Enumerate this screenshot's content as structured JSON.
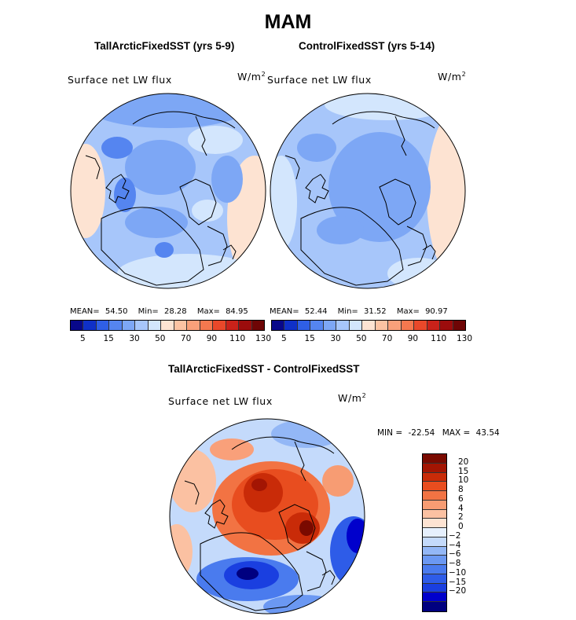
{
  "figure": {
    "season": "MAM"
  },
  "colors": {
    "abs_scale": [
      "#08088a",
      "#0f30c8",
      "#2f5fe6",
      "#5585f0",
      "#7da7f5",
      "#a7c6fa",
      "#d3e6fd",
      "#fde3d2",
      "#fcc3a3",
      "#f9a07a",
      "#f5784f",
      "#e9482a",
      "#c9221a",
      "#9c0c0c",
      "#6e0505"
    ],
    "diff_scale": [
      "#000080",
      "#0000cc",
      "#1a3fe0",
      "#2e5ce8",
      "#4a7bee",
      "#6b98f2",
      "#93b7f6",
      "#c4dafb",
      "#e6f0fd",
      "#fde3d2",
      "#fbc1a2",
      "#f79c73",
      "#f27343",
      "#e84d1f",
      "#c92b08",
      "#a31503",
      "#7a0a00"
    ],
    "land_outline": "#000000"
  },
  "chart_data": [
    {
      "type": "heatmap",
      "projection": "north-polar-stereographic",
      "title": "TallArcticFixedSST (yrs 5-9)",
      "variable": "Surface net LW flux",
      "units": "W/m",
      "units_sup": "2",
      "stats": {
        "mean_label": "MEAN=",
        "mean": "54.50",
        "min_label": "Min=",
        "min": "28.28",
        "max_label": "Max=",
        "max": "84.95"
      },
      "colorbar": {
        "orientation": "horizontal",
        "levels": [
          5,
          10,
          15,
          20,
          30,
          40,
          50,
          60,
          70,
          80,
          90,
          100,
          110,
          120,
          130
        ],
        "tick_labels": [
          "5",
          "15",
          "30",
          "50",
          "70",
          "90",
          "110",
          "130"
        ]
      }
    },
    {
      "type": "heatmap",
      "projection": "north-polar-stereographic",
      "title": "ControlFixedSST (yrs 5-14)",
      "variable": "Surface net LW flux",
      "units": "W/m",
      "units_sup": "2",
      "stats": {
        "mean_label": "MEAN=",
        "mean": "52.44",
        "min_label": "Min=",
        "min": "31.52",
        "max_label": "Max=",
        "max": "90.97"
      },
      "colorbar": {
        "orientation": "horizontal",
        "levels": [
          5,
          10,
          15,
          20,
          30,
          40,
          50,
          60,
          70,
          80,
          90,
          100,
          110,
          120,
          130
        ],
        "tick_labels": [
          "5",
          "15",
          "30",
          "50",
          "70",
          "90",
          "110",
          "130"
        ]
      }
    },
    {
      "type": "heatmap",
      "projection": "north-polar-stereographic",
      "title": "TallArcticFixedSST - ControlFixedSST",
      "variable": "Surface net LW flux",
      "units": "W/m",
      "units_sup": "2",
      "stats": {
        "min_label": "MIN =",
        "min": "-22.54",
        "max_label": "MAX =",
        "max": "43.54"
      },
      "colorbar": {
        "orientation": "vertical",
        "levels": [
          -20,
          -15,
          -10,
          -8,
          -6,
          -4,
          -2,
          0,
          2,
          4,
          6,
          8,
          10,
          15,
          20
        ],
        "tick_labels": [
          "20",
          "15",
          "10",
          "8",
          "6",
          "4",
          "2",
          "0",
          "−2",
          "−4",
          "−6",
          "−8",
          "−10",
          "−15",
          "−20"
        ]
      }
    }
  ]
}
